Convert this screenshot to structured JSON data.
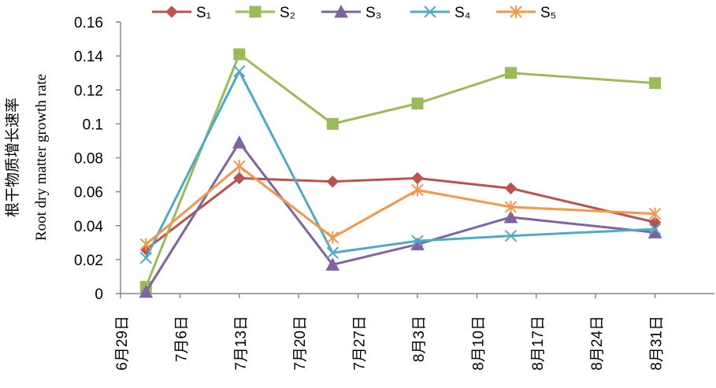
{
  "chart_data": {
    "type": "line",
    "title": "",
    "ylabel": "根干物质增长速率",
    "ylabel2": "Root dry matter growth rate",
    "xlabel": "",
    "ylim": [
      0,
      0.16
    ],
    "yticks": [
      0,
      0.02,
      0.04,
      0.06,
      0.08,
      0.1,
      0.12,
      0.14,
      0.16
    ],
    "ytick_labels": [
      "0",
      "0.02",
      "0.04",
      "0.06",
      "0.08",
      "0.1",
      "0.12",
      "0.14",
      "0.16"
    ],
    "xlim_day": [
      0,
      70
    ],
    "xtick_days": [
      0,
      7,
      14,
      21,
      28,
      35,
      42,
      49,
      56,
      63
    ],
    "xtick_labels": [
      "6月29日",
      "7月6日",
      "7月13日",
      "7月20日",
      "7月27日",
      "8月3日",
      "8月10日",
      "8月17日",
      "8月24日",
      "8月31日"
    ],
    "legend_position": "top",
    "x_days": [
      3,
      14,
      25,
      35,
      46,
      63
    ],
    "series": [
      {
        "name": "S₁",
        "color": "#c0504d",
        "marker": "diamond",
        "values": [
          0.026,
          0.068,
          0.066,
          0.068,
          0.062,
          0.042
        ]
      },
      {
        "name": "S₂",
        "color": "#9bbb59",
        "marker": "square",
        "values": [
          0.004,
          0.141,
          0.1,
          0.112,
          0.13,
          0.124
        ]
      },
      {
        "name": "S₃",
        "color": "#8064a2",
        "marker": "triangle",
        "values": [
          0.001,
          0.089,
          0.017,
          0.029,
          0.045,
          0.036
        ]
      },
      {
        "name": "S₄",
        "color": "#4bacc6",
        "marker": "x",
        "values": [
          0.021,
          0.131,
          0.024,
          0.031,
          0.034,
          0.038
        ]
      },
      {
        "name": "S₅",
        "color": "#f79646",
        "marker": "star",
        "values": [
          0.029,
          0.075,
          0.033,
          0.061,
          0.051,
          0.047
        ]
      }
    ]
  }
}
